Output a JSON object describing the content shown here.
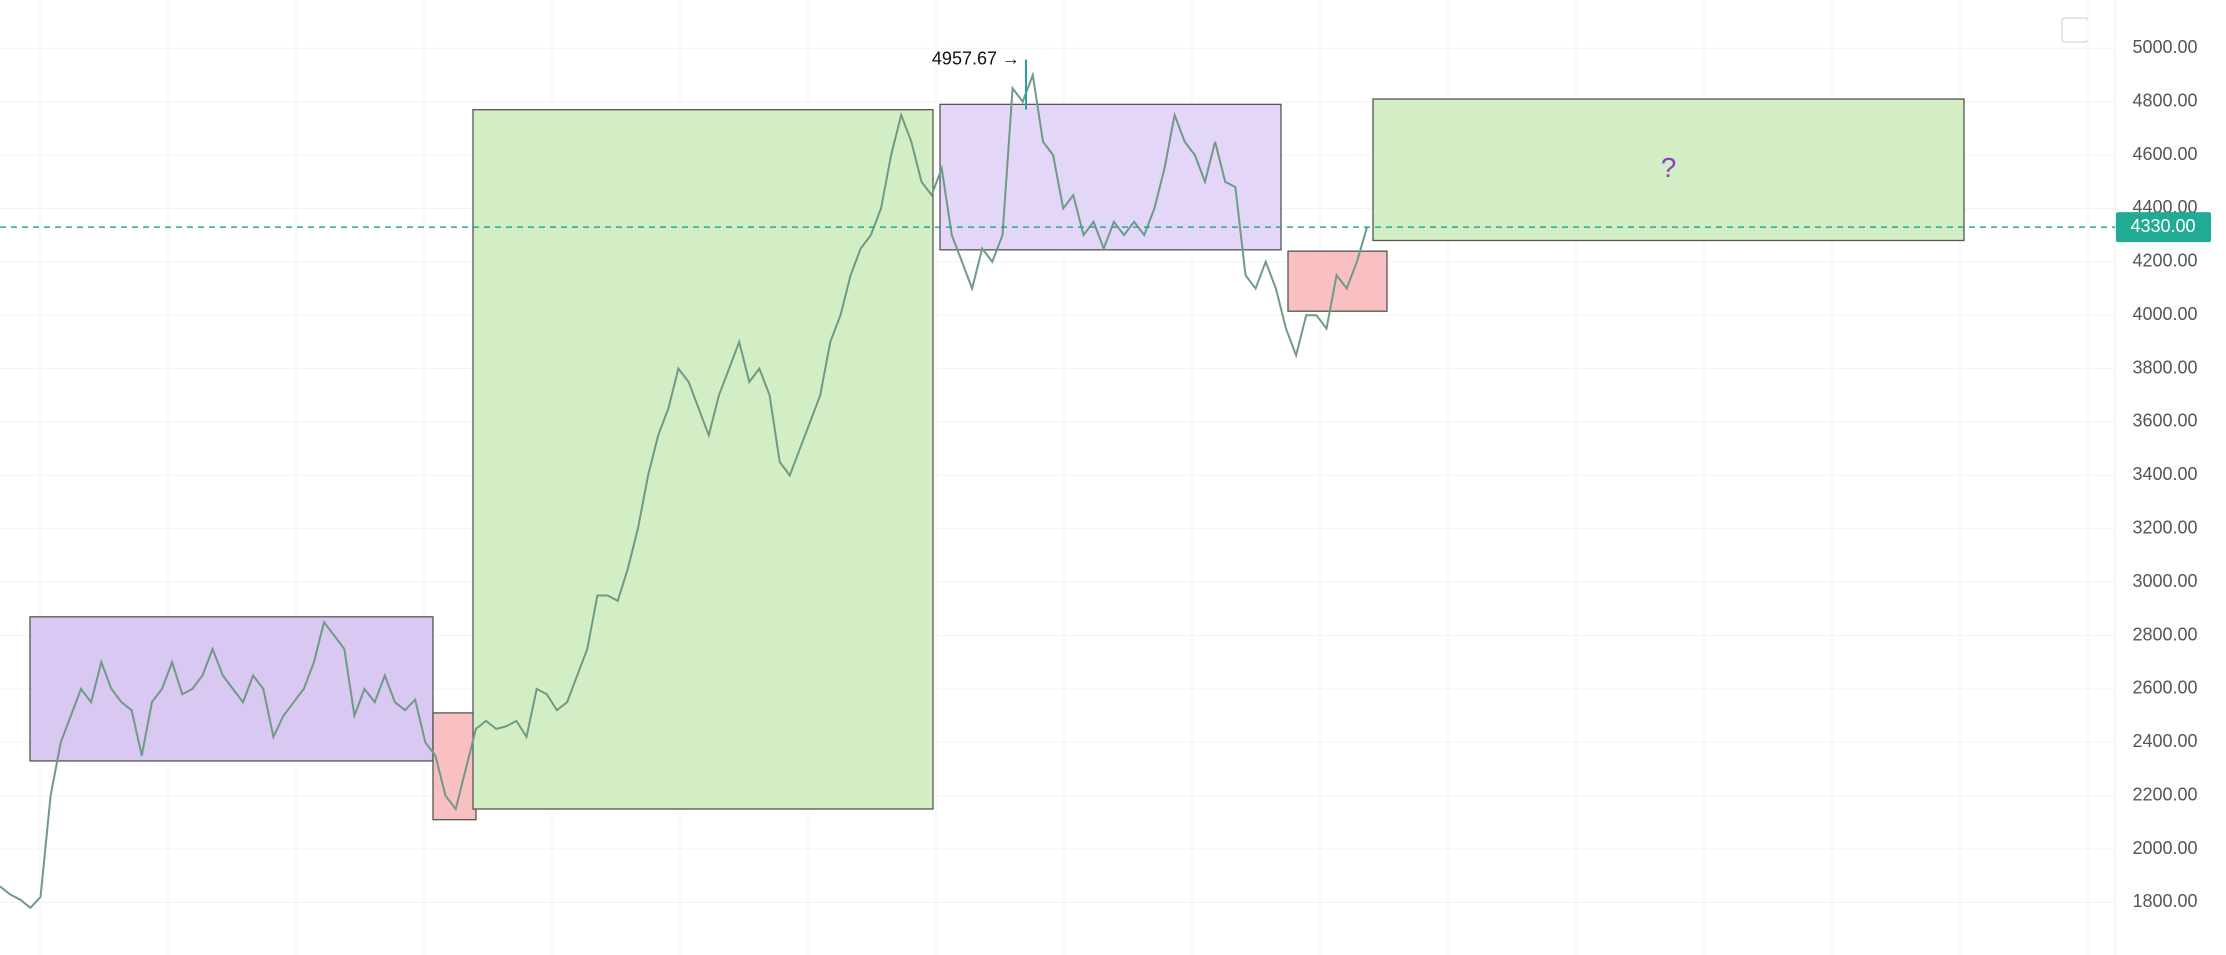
{
  "chart_data": {
    "type": "line",
    "ylim": [
      1603,
      5181
    ],
    "yticks": [
      {
        "value": 1800,
        "label": "1800.00"
      },
      {
        "value": 2000,
        "label": "2000.00"
      },
      {
        "value": 2200,
        "label": "2200.00"
      },
      {
        "value": 2400,
        "label": "2400.00"
      },
      {
        "value": 2600,
        "label": "2600.00"
      },
      {
        "value": 2800,
        "label": "2800.00"
      },
      {
        "value": 3000,
        "label": "3000.00"
      },
      {
        "value": 3200,
        "label": "3200.00"
      },
      {
        "value": 3400,
        "label": "3400.00"
      },
      {
        "value": 3600,
        "label": "3600.00"
      },
      {
        "value": 3800,
        "label": "3800.00"
      },
      {
        "value": 4000,
        "label": "4000.00"
      },
      {
        "value": 4200,
        "label": "4200.00"
      },
      {
        "value": 4400,
        "label": "4400.00"
      },
      {
        "value": 4600,
        "label": "4600.00"
      },
      {
        "value": 4800,
        "label": "4800.00"
      },
      {
        "value": 5000,
        "label": "5000.00"
      }
    ],
    "grid": true,
    "color": "#6f9a86",
    "values": [
      1860,
      1830,
      1810,
      1780,
      1820,
      2200,
      2400,
      2500,
      2600,
      2550,
      2700,
      2600,
      2550,
      2520,
      2350,
      2550,
      2600,
      2700,
      2580,
      2600,
      2650,
      2750,
      2650,
      2600,
      2550,
      2650,
      2600,
      2420,
      2500,
      2550,
      2600,
      2700,
      2850,
      2800,
      2750,
      2500,
      2600,
      2550,
      2650,
      2550,
      2520,
      2560,
      2400,
      2350,
      2200,
      2150,
      2300,
      2450,
      2480,
      2450,
      2460,
      2480,
      2420,
      2600,
      2580,
      2520,
      2550,
      2650,
      2750,
      2950,
      2950,
      2930,
      3050,
      3200,
      3400,
      3550,
      3650,
      3800,
      3750,
      3650,
      3550,
      3700,
      3800,
      3900,
      3750,
      3800,
      3700,
      3450,
      3400,
      3500,
      3600,
      3700,
      3900,
      4000,
      4150,
      4250,
      4300,
      4400,
      4600,
      4750,
      4650,
      4500,
      4450,
      4550,
      4300,
      4200,
      4100,
      4250,
      4200,
      4300,
      4850,
      4800,
      4900,
      4650,
      4600,
      4400,
      4450,
      4300,
      4350,
      4250,
      4350,
      4300,
      4350,
      4300,
      4400,
      4550,
      4750,
      4650,
      4600,
      4500,
      4650,
      4500,
      4480,
      4150,
      4100,
      4200,
      4100,
      3950,
      3850,
      4000,
      4000,
      3950,
      4150,
      4100,
      4200,
      4330
    ],
    "last_price": {
      "value": 4330,
      "label": "4330.00",
      "color": "#22ab94"
    },
    "high_marker": {
      "value": 4957.67,
      "label": "4957.67 →"
    },
    "zones": [
      {
        "top": 2870,
        "bottom": 2330,
        "color": "#d8c8f2"
      },
      {
        "top": 2510,
        "bottom": 2110,
        "color": "#f8c0c0"
      },
      {
        "top": 4770,
        "bottom": 2150,
        "color": "#d3eec4"
      },
      {
        "top": 4790,
        "bottom": 4245,
        "color": "#e4d6f8"
      },
      {
        "top": 4240,
        "bottom": 4015,
        "color": "#f8c0c0"
      },
      {
        "top": 4810,
        "bottom": 4280,
        "color": "#d3eec4",
        "label": "?"
      }
    ]
  }
}
